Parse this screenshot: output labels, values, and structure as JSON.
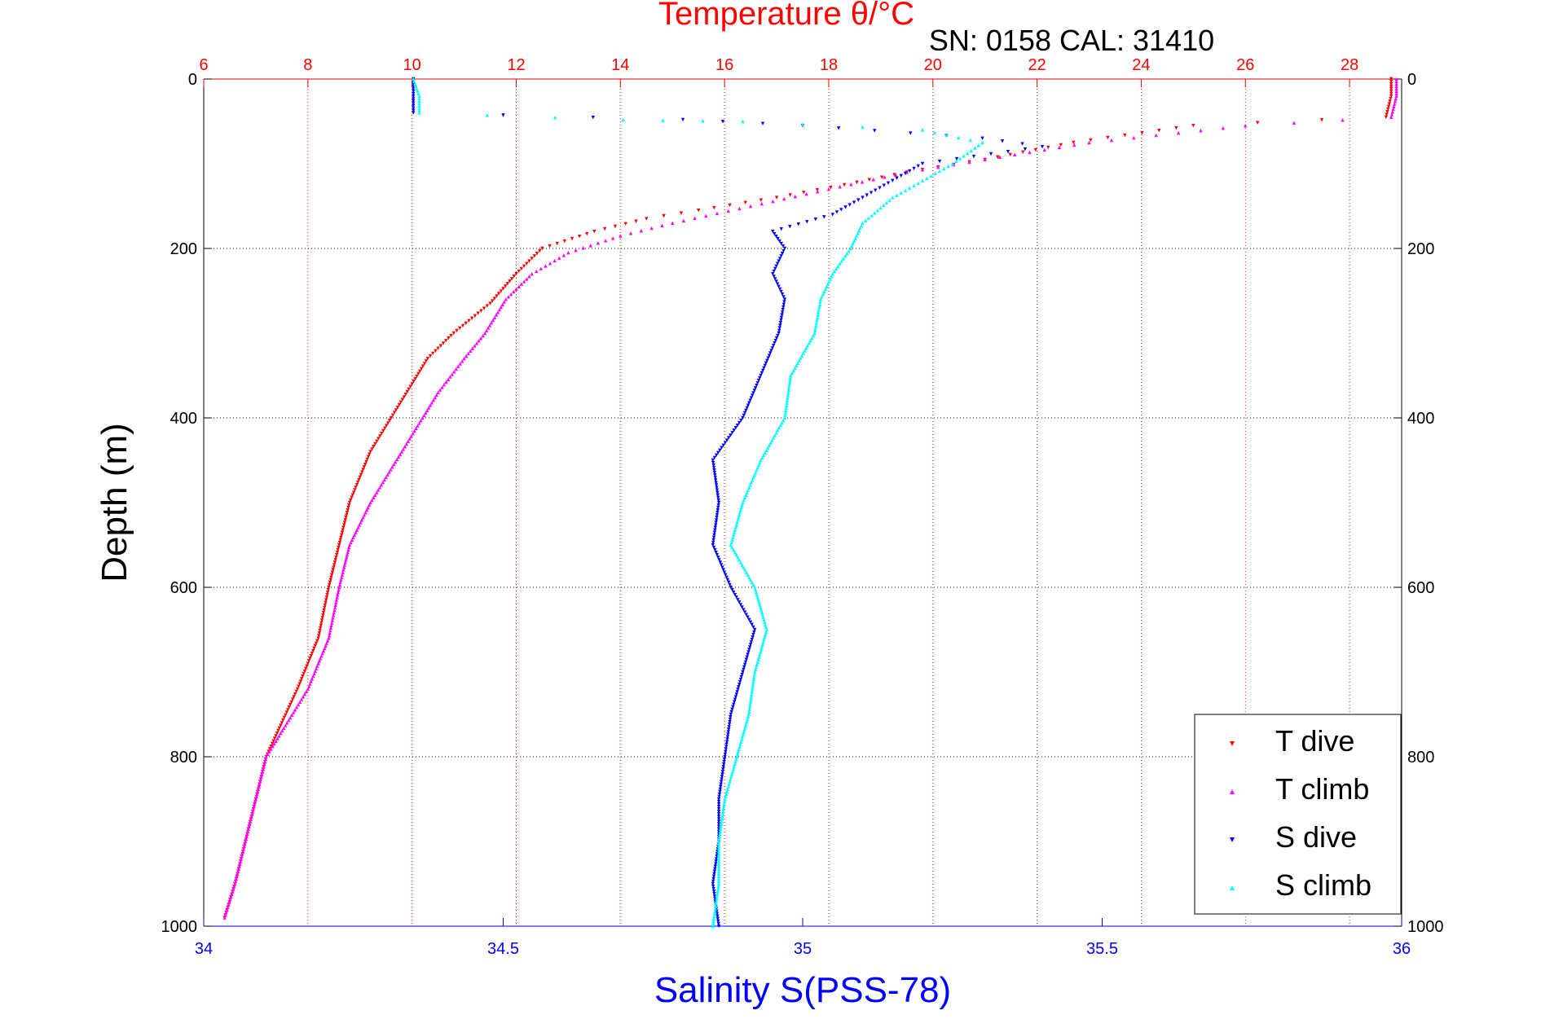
{
  "chart_data": {
    "type": "scatter",
    "title": "Temperature θ/°C",
    "subtitle": "SN: 0158  CAL: 31410",
    "xlabel": "Salinity S(PSS-78)",
    "ylabel": "Depth (m)",
    "grid": true,
    "legend_position": "bottom-right",
    "y_axis": {
      "label": "Depth (m)",
      "lim": [
        0,
        1000
      ],
      "reversed": true,
      "ticks": [
        "0",
        "200",
        "400",
        "600",
        "800",
        "1000"
      ]
    },
    "x_top_axis": {
      "label": "Temperature θ/°C",
      "lim": [
        6,
        29
      ],
      "ticks": [
        "6",
        "8",
        "10",
        "12",
        "14",
        "16",
        "18",
        "20",
        "22",
        "24",
        "26",
        "28"
      ],
      "color": "#ff0000"
    },
    "x_bottom_axis": {
      "label": "Salinity S(PSS-78)",
      "lim": [
        34,
        36
      ],
      "ticks": [
        "34",
        "34.5",
        "35",
        "35.5",
        "36"
      ],
      "color": "#0000ff"
    },
    "series": [
      {
        "name": "T dive",
        "axis": "temperature",
        "color": "#ff0000",
        "marker": "triangle-down",
        "points": [
          [
            28.8,
            0
          ],
          [
            28.8,
            20
          ],
          [
            28.7,
            45
          ],
          [
            25.0,
            55
          ],
          [
            22.7,
            75
          ],
          [
            21.0,
            95
          ],
          [
            19.5,
            110
          ],
          [
            18.3,
            125
          ],
          [
            17.0,
            140
          ],
          [
            15.5,
            155
          ],
          [
            14.5,
            165
          ],
          [
            13.5,
            180
          ],
          [
            12.5,
            200
          ],
          [
            12.0,
            230
          ],
          [
            11.5,
            265
          ],
          [
            10.8,
            300
          ],
          [
            10.3,
            330
          ],
          [
            10.0,
            360
          ],
          [
            9.6,
            400
          ],
          [
            9.2,
            440
          ],
          [
            8.8,
            500
          ],
          [
            8.6,
            550
          ],
          [
            8.4,
            600
          ],
          [
            8.2,
            660
          ],
          [
            7.8,
            720
          ],
          [
            7.5,
            760
          ],
          [
            7.2,
            800
          ],
          [
            7.0,
            850
          ],
          [
            6.8,
            900
          ],
          [
            6.6,
            950
          ],
          [
            6.4,
            990
          ]
        ]
      },
      {
        "name": "T climb",
        "axis": "temperature",
        "color": "#ff00ff",
        "marker": "triangle-up",
        "points": [
          [
            28.9,
            0
          ],
          [
            28.9,
            20
          ],
          [
            28.8,
            45
          ],
          [
            26.0,
            55
          ],
          [
            23.0,
            75
          ],
          [
            21.0,
            95
          ],
          [
            19.5,
            110
          ],
          [
            18.0,
            130
          ],
          [
            16.5,
            150
          ],
          [
            15.0,
            170
          ],
          [
            14.0,
            185
          ],
          [
            13.0,
            205
          ],
          [
            12.3,
            230
          ],
          [
            11.8,
            260
          ],
          [
            11.4,
            300
          ],
          [
            11.0,
            330
          ],
          [
            10.5,
            370
          ],
          [
            10.2,
            400
          ],
          [
            9.8,
            440
          ],
          [
            9.2,
            500
          ],
          [
            8.8,
            550
          ],
          [
            8.6,
            600
          ],
          [
            8.4,
            660
          ],
          [
            8.0,
            720
          ],
          [
            7.6,
            760
          ],
          [
            7.2,
            800
          ],
          [
            7.0,
            850
          ],
          [
            6.8,
            900
          ],
          [
            6.6,
            950
          ],
          [
            6.4,
            990
          ]
        ]
      },
      {
        "name": "S dive",
        "axis": "salinity",
        "color": "#0000ff",
        "marker": "triangle-down",
        "points": [
          [
            34.35,
            0
          ],
          [
            34.35,
            20
          ],
          [
            34.35,
            40
          ],
          [
            34.8,
            48
          ],
          [
            35.0,
            55
          ],
          [
            35.3,
            70
          ],
          [
            35.4,
            80
          ],
          [
            35.2,
            100
          ],
          [
            35.15,
            120
          ],
          [
            35.1,
            140
          ],
          [
            35.05,
            160
          ],
          [
            34.95,
            180
          ],
          [
            34.97,
            200
          ],
          [
            34.95,
            230
          ],
          [
            34.97,
            260
          ],
          [
            34.96,
            300
          ],
          [
            34.93,
            350
          ],
          [
            34.9,
            400
          ],
          [
            34.85,
            450
          ],
          [
            34.86,
            500
          ],
          [
            34.85,
            550
          ],
          [
            34.88,
            600
          ],
          [
            34.92,
            650
          ],
          [
            34.9,
            700
          ],
          [
            34.88,
            750
          ],
          [
            34.87,
            800
          ],
          [
            34.86,
            850
          ],
          [
            34.86,
            900
          ],
          [
            34.85,
            950
          ],
          [
            34.86,
            1000
          ]
        ]
      },
      {
        "name": "S climb",
        "axis": "salinity",
        "color": "#00ffff",
        "marker": "triangle-up",
        "points": [
          [
            34.35,
            0
          ],
          [
            34.36,
            20
          ],
          [
            34.36,
            40
          ],
          [
            34.7,
            48
          ],
          [
            34.9,
            50
          ],
          [
            35.2,
            60
          ],
          [
            35.3,
            75
          ],
          [
            35.25,
            100
          ],
          [
            35.2,
            120
          ],
          [
            35.15,
            140
          ],
          [
            35.1,
            170
          ],
          [
            35.08,
            200
          ],
          [
            35.05,
            230
          ],
          [
            35.03,
            260
          ],
          [
            35.02,
            300
          ],
          [
            34.98,
            350
          ],
          [
            34.97,
            400
          ],
          [
            34.93,
            450
          ],
          [
            34.9,
            500
          ],
          [
            34.88,
            550
          ],
          [
            34.92,
            600
          ],
          [
            34.94,
            650
          ],
          [
            34.92,
            700
          ],
          [
            34.91,
            750
          ],
          [
            34.89,
            800
          ],
          [
            34.87,
            850
          ],
          [
            34.86,
            900
          ],
          [
            34.86,
            950
          ],
          [
            34.85,
            1000
          ]
        ]
      }
    ]
  }
}
